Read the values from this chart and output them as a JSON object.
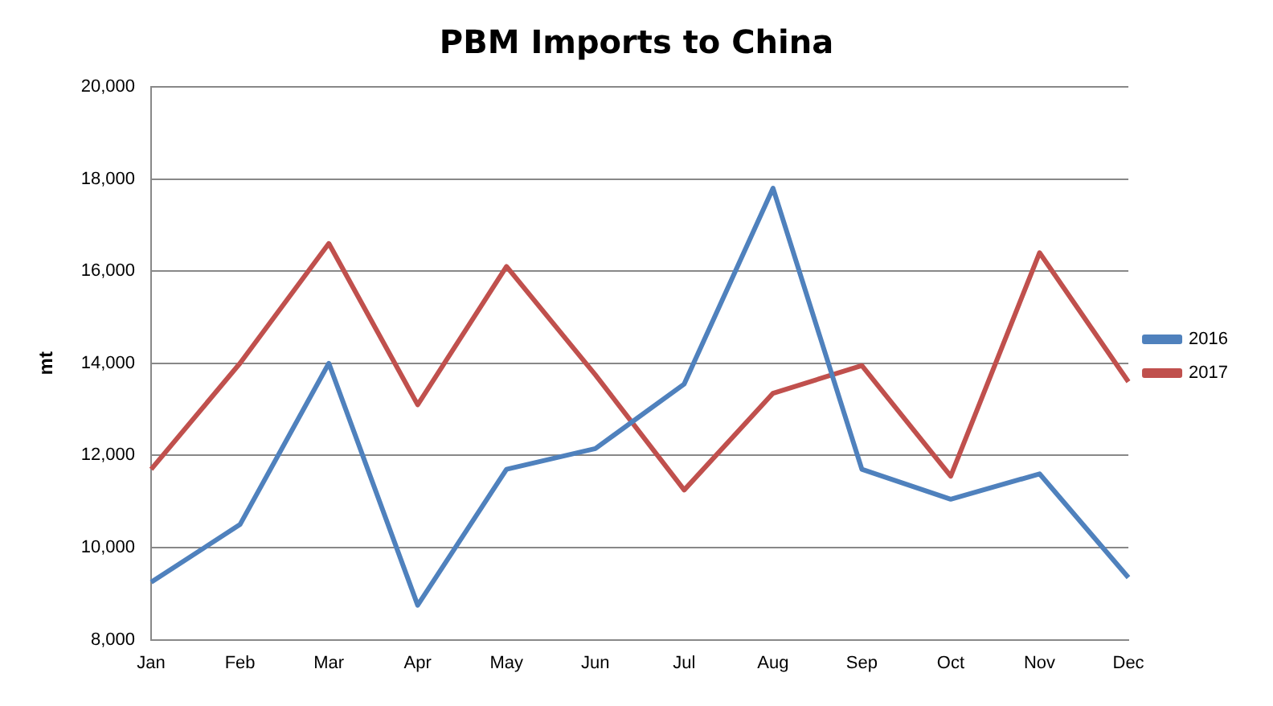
{
  "chart_data": {
    "type": "line",
    "title": "PBM Imports to China",
    "ylabel": "mt",
    "categories": [
      "Jan",
      "Feb",
      "Mar",
      "Apr",
      "May",
      "Jun",
      "Jul",
      "Aug",
      "Sep",
      "Oct",
      "Nov",
      "Dec"
    ],
    "series": [
      {
        "name": "2016",
        "color": "#4f81bd",
        "values": [
          9250,
          10500,
          14000,
          8750,
          11700,
          12150,
          13550,
          17800,
          11700,
          11050,
          11600,
          9350
        ]
      },
      {
        "name": "2017",
        "color": "#c0504d",
        "values": [
          11700,
          14000,
          16600,
          13100,
          16100,
          13750,
          11250,
          13350,
          13950,
          11550,
          16400,
          13600
        ]
      }
    ],
    "ylim": [
      8000,
      20000
    ],
    "yticks": [
      {
        "value": 8000,
        "label": "8,000"
      },
      {
        "value": 10000,
        "label": "10,000"
      },
      {
        "value": 12000,
        "label": "12,000"
      },
      {
        "value": 14000,
        "label": "14,000"
      },
      {
        "value": 16000,
        "label": "16,000"
      },
      {
        "value": 18000,
        "label": "18,000"
      },
      {
        "value": 20000,
        "label": "20,000"
      }
    ],
    "grid": "y",
    "legend": "right",
    "marker": "none",
    "line_style": "solid"
  }
}
